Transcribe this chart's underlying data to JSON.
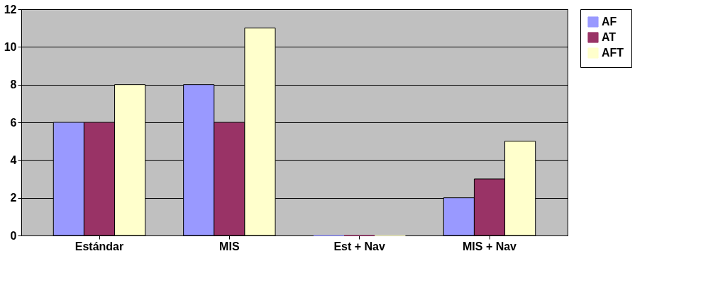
{
  "chart_data": {
    "type": "bar",
    "categories": [
      "Estándar",
      "MIS",
      "Est + Nav",
      "MIS + Nav"
    ],
    "series": [
      {
        "name": "AF",
        "color": "#9999ff",
        "values": [
          6,
          8,
          0,
          2
        ]
      },
      {
        "name": "AT",
        "color": "#993366",
        "values": [
          6,
          6,
          0,
          3
        ]
      },
      {
        "name": "AFT",
        "color": "#ffffcc",
        "values": [
          8,
          11,
          0,
          5
        ]
      }
    ],
    "ylim": [
      0,
      12
    ],
    "yticks": [
      0,
      2,
      4,
      6,
      8,
      10,
      12
    ],
    "grid": "y",
    "legend": "right"
  }
}
